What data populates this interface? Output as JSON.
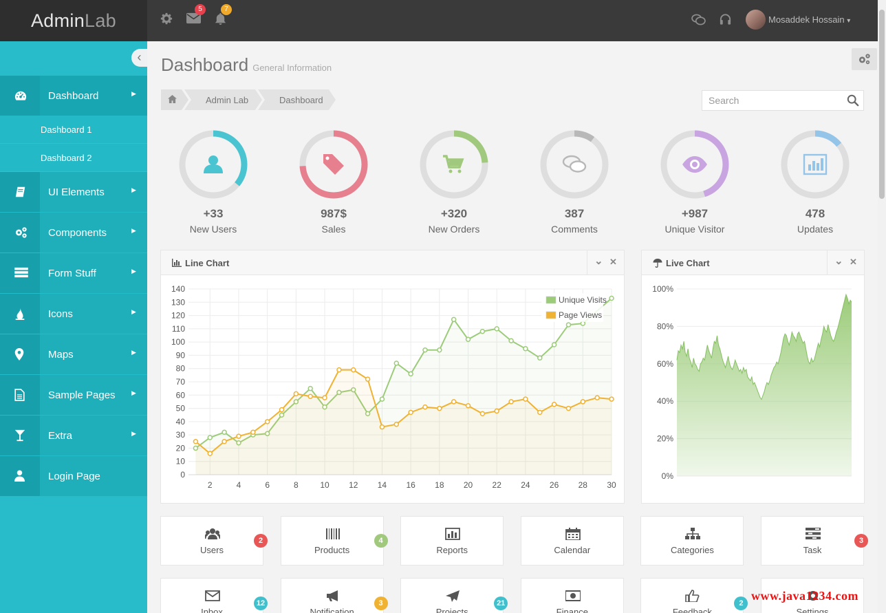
{
  "app": {
    "logo_part1": "Admin",
    "logo_part2": "Lab"
  },
  "topbar": {
    "mail_count": "5",
    "notification_count": "7",
    "user_name": "Mosaddek Hossain",
    "user_caret": "▾"
  },
  "sidebar": {
    "items": [
      {
        "label": "Dashboard",
        "icon": "dashboard-icon"
      },
      {
        "label": "UI Elements",
        "icon": "book-icon"
      },
      {
        "label": "Components",
        "icon": "cogs-icon"
      },
      {
        "label": "Form Stuff",
        "icon": "list-icon"
      },
      {
        "label": "Icons",
        "icon": "drop-icon"
      },
      {
        "label": "Maps",
        "icon": "map-marker-icon"
      },
      {
        "label": "Sample Pages",
        "icon": "file-icon"
      },
      {
        "label": "Extra",
        "icon": "glass-icon"
      },
      {
        "label": "Login Page",
        "icon": "user-icon"
      }
    ],
    "subitems": [
      "Dashboard 1",
      "Dashboard 2"
    ],
    "arrow": "▶",
    "collapse": "‹"
  },
  "page": {
    "title": "Dashboard",
    "subtitle": "General Information"
  },
  "breadcrumb": [
    "Admin Lab",
    "Dashboard"
  ],
  "search": {
    "placeholder": "Search"
  },
  "stats": [
    {
      "value": "+33",
      "label": "New Users",
      "color": "#4ac4d0",
      "progress": 0.36
    },
    {
      "value": "987$",
      "label": "Sales",
      "color": "#e6808f",
      "progress": 0.74
    },
    {
      "value": "+320",
      "label": "New Orders",
      "color": "#a1c97d",
      "progress": 0.24
    },
    {
      "value": "387",
      "label": "Comments",
      "color": "#b8b8b8",
      "progress": 0.1
    },
    {
      "value": "+987",
      "label": "Unique Visitor",
      "color": "#c8a5e0",
      "progress": 0.45
    },
    {
      "value": "478",
      "label": "Updates",
      "color": "#94c5e8",
      "progress": 0.14
    }
  ],
  "line_panel": {
    "title": "Line Chart",
    "chevron": "⌄",
    "close": "✕"
  },
  "live_panel": {
    "title": "Live Chart",
    "chevron": "⌄",
    "close": "✕"
  },
  "chart_data": [
    {
      "type": "line",
      "title": "Line Chart",
      "x": [
        1,
        2,
        3,
        4,
        5,
        6,
        7,
        8,
        9,
        10,
        11,
        12,
        13,
        14,
        15,
        16,
        17,
        18,
        19,
        20,
        21,
        22,
        23,
        24,
        25,
        26,
        27,
        28,
        29,
        30
      ],
      "xticks": [
        2,
        4,
        6,
        8,
        10,
        12,
        14,
        16,
        18,
        20,
        22,
        24,
        26,
        28,
        30
      ],
      "yticks": [
        0,
        10,
        20,
        30,
        40,
        50,
        60,
        70,
        80,
        90,
        100,
        110,
        120,
        130,
        140
      ],
      "ylim": [
        0,
        140
      ],
      "xlim": [
        0.5,
        30
      ],
      "grid": true,
      "legend_position": "top-right",
      "series": [
        {
          "name": "Unique Visits",
          "color": "#9ccc7a",
          "values": [
            20,
            28,
            32,
            24,
            30,
            31,
            45,
            55,
            65,
            51,
            62,
            64,
            46,
            57,
            84,
            76,
            94,
            94,
            117,
            102,
            108,
            110,
            101,
            95,
            88,
            98,
            113,
            114,
            null,
            133
          ]
        },
        {
          "name": "Page Views",
          "color": "#f0b233",
          "values": [
            25,
            16,
            25,
            29,
            32,
            40,
            49,
            61,
            59,
            58,
            79,
            79,
            72,
            36,
            38,
            47,
            51,
            50,
            55,
            52,
            46,
            48,
            55,
            57,
            47,
            53,
            50,
            55,
            58,
            57
          ]
        }
      ]
    },
    {
      "type": "area",
      "title": "Live Chart",
      "yticks": [
        "0%",
        "20%",
        "40%",
        "60%",
        "80%",
        "100%"
      ],
      "ylim": [
        0,
        100
      ],
      "color": "#9ccc7a",
      "values": [
        62,
        67,
        66,
        70,
        68,
        72,
        66,
        64,
        68,
        63,
        61,
        58,
        63,
        60,
        59,
        57,
        56,
        60,
        61,
        63,
        62,
        66,
        70,
        67,
        65,
        63,
        68,
        72,
        71,
        75,
        70,
        68,
        65,
        62,
        60,
        58,
        61,
        64,
        60,
        58,
        57,
        59,
        62,
        60,
        58,
        56,
        57,
        55,
        58,
        56,
        57,
        53,
        52,
        51,
        53,
        49,
        50,
        48,
        46,
        44,
        42,
        41,
        43,
        45,
        48,
        50,
        49,
        51,
        54,
        56,
        58,
        59,
        61,
        60,
        63,
        66,
        70,
        74,
        76,
        75,
        72,
        70,
        73,
        77,
        75,
        74,
        72,
        76,
        77,
        75,
        73,
        71,
        72,
        68,
        64,
        61,
        60,
        63,
        61,
        62,
        65,
        68,
        71,
        69,
        73,
        76,
        80,
        78,
        77,
        81,
        78,
        75,
        73,
        72,
        74,
        77,
        79,
        82,
        85,
        88,
        91,
        94,
        97,
        95,
        92,
        94,
        93
      ]
    }
  ],
  "tiles_row1": [
    {
      "label": "Users",
      "icon": "users-icon",
      "badge": "2",
      "badge_color": "#e85656"
    },
    {
      "label": "Products",
      "icon": "barcode-icon",
      "badge": "4",
      "badge_color": "#a1c97d"
    },
    {
      "label": "Reports",
      "icon": "bar-chart-icon",
      "badge": "",
      "badge_color": ""
    },
    {
      "label": "Calendar",
      "icon": "calendar-icon",
      "badge": "",
      "badge_color": ""
    },
    {
      "label": "Categories",
      "icon": "sitemap-icon",
      "badge": "",
      "badge_color": ""
    },
    {
      "label": "Task",
      "icon": "tasks-icon",
      "badge": "3",
      "badge_color": "#e85656"
    }
  ],
  "tiles_row2": [
    {
      "label": "Inbox",
      "icon": "envelope-icon",
      "badge": "12",
      "badge_color": "#40c0cc"
    },
    {
      "label": "Notification",
      "icon": "bullhorn-icon",
      "badge": "3",
      "badge_color": "#f0b233"
    },
    {
      "label": "Projects",
      "icon": "plane-icon",
      "badge": "21",
      "badge_color": "#40c0cc"
    },
    {
      "label": "Finance",
      "icon": "money-icon",
      "badge": "",
      "badge_color": ""
    },
    {
      "label": "Feedback",
      "icon": "thumbs-up-icon",
      "badge": "2",
      "badge_color": "#40c0cc"
    },
    {
      "label": "Settings",
      "icon": "gear-icon",
      "badge": "",
      "badge_color": ""
    }
  ],
  "watermark": "www.java1234.com"
}
